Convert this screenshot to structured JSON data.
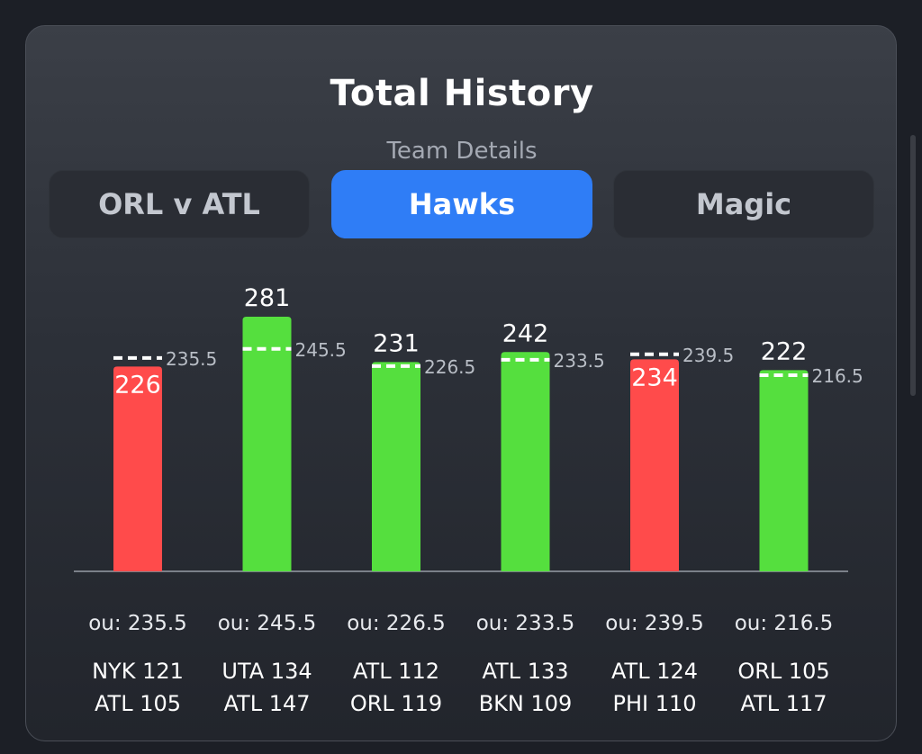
{
  "header": {
    "title": "Total History",
    "subtitle": "Team Details"
  },
  "tabs": [
    {
      "label": "ORL v ATL",
      "active": false
    },
    {
      "label": "Hawks",
      "active": true
    },
    {
      "label": "Magic",
      "active": false
    }
  ],
  "colors": {
    "over": "#55df3e",
    "under": "#ff4b4b",
    "accent": "#2f7df6"
  },
  "chart_data": {
    "type": "bar",
    "title": "",
    "xlabel": "",
    "ylabel": "",
    "categories": [
      [
        "NYK 121",
        "ATL 105"
      ],
      [
        "UTA 134",
        "ATL 147"
      ],
      [
        "ATL 112",
        "ORL 119"
      ],
      [
        "ATL 133",
        "BKN 109"
      ],
      [
        "ATL 124",
        "PHI 110"
      ],
      [
        "ORL 105",
        "ATL 117"
      ]
    ],
    "values": [
      226,
      281,
      231,
      242,
      234,
      222
    ],
    "lines": [
      235.5,
      245.5,
      226.5,
      233.5,
      239.5,
      216.5
    ],
    "line_labels": [
      "235.5",
      "245.5",
      "226.5",
      "233.5",
      "239.5",
      "216.5"
    ],
    "ou_labels": [
      "ou: 235.5",
      "ou: 245.5",
      "ou: 226.5",
      "ou: 233.5",
      "ou: 239.5",
      "ou: 216.5"
    ],
    "result": [
      "under",
      "over",
      "over",
      "over",
      "under",
      "over"
    ],
    "grid": false,
    "legend": "none"
  }
}
